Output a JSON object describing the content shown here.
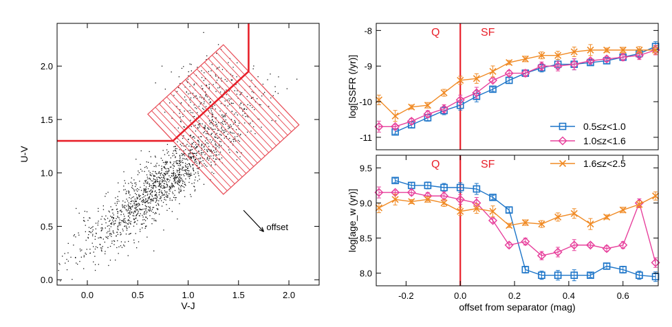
{
  "colors": {
    "axis": "#000000",
    "red": "#e8202a",
    "blue": "#1b74c8",
    "magenta": "#e7409c",
    "orange": "#f08a24",
    "hatch": "#e8505a"
  },
  "chart_data": [
    {
      "id": "uvj",
      "type": "scatter",
      "xlabel": "V-J",
      "ylabel": "U-V",
      "xlim": [
        -0.3,
        2.3
      ],
      "ylim": [
        -0.05,
        2.4
      ],
      "xticks": [
        "0.0",
        "0.5",
        "1.0",
        "1.5",
        "2.0"
      ],
      "xtick_values": [
        0.0,
        0.5,
        1.0,
        1.5,
        2.0
      ],
      "yticks": [
        "0.0",
        "0.5",
        "1.0",
        "1.5",
        "2.0"
      ],
      "ytick_values": [
        0.0,
        0.5,
        1.0,
        1.5,
        2.0
      ],
      "separator_line": [
        [
          -0.3,
          1.3
        ],
        [
          0.85,
          1.3
        ],
        [
          1.6,
          1.95
        ],
        [
          1.6,
          2.4
        ]
      ],
      "hatched_box_corners": [
        [
          0.6,
          1.55
        ],
        [
          1.35,
          2.2
        ],
        [
          2.1,
          1.45
        ],
        [
          1.35,
          0.8
        ]
      ],
      "annotation": "offset",
      "annotation_arrow": [
        [
          1.55,
          0.65
        ],
        [
          1.75,
          0.45
        ]
      ],
      "grid": false,
      "legend": "none"
    },
    {
      "id": "ssfr",
      "type": "line",
      "ylabel": "log[SSFR (/yr)]",
      "xlim": [
        -0.31,
        0.73
      ],
      "ylim": [
        -11.35,
        -7.8
      ],
      "yticks": [
        "-8",
        "-9",
        "-10",
        "-11"
      ],
      "ytick_values": [
        -8,
        -9,
        -10,
        -11
      ],
      "region_labels": [
        "Q",
        "SF"
      ],
      "separator_x": 0.0,
      "legend": "bottom-right",
      "series": [
        {
          "name": "0.5≤z<1.0",
          "marker": "square",
          "color": "#1b74c8",
          "x": [
            -0.24,
            -0.18,
            -0.12,
            -0.06,
            0.0,
            0.06,
            0.12,
            0.18,
            0.24,
            0.3,
            0.36,
            0.42,
            0.48,
            0.54,
            0.6,
            0.66,
            0.72
          ],
          "y": [
            -10.85,
            -10.65,
            -10.45,
            -10.25,
            -10.1,
            -9.85,
            -9.65,
            -9.4,
            -9.2,
            -9.05,
            -8.95,
            -8.95,
            -8.9,
            -8.85,
            -8.75,
            -8.65,
            -8.45
          ]
        },
        {
          "name": "1.0≤z<1.6",
          "marker": "diamond",
          "color": "#e7409c",
          "x": [
            -0.3,
            -0.24,
            -0.18,
            -0.12,
            -0.06,
            0.0,
            0.06,
            0.12,
            0.18,
            0.24,
            0.3,
            0.36,
            0.42,
            0.48,
            0.54,
            0.6,
            0.66,
            0.72
          ],
          "y": [
            -10.7,
            -10.7,
            -10.55,
            -10.35,
            -10.2,
            -9.95,
            -9.75,
            -9.4,
            -9.2,
            -9.2,
            -9.0,
            -9.0,
            -8.95,
            -8.85,
            -8.8,
            -8.75,
            -8.7,
            -8.55
          ]
        },
        {
          "name": "1.6≤z<2.5",
          "marker": "x",
          "color": "#f08a24",
          "x": [
            -0.3,
            -0.24,
            -0.18,
            -0.12,
            -0.06,
            0.0,
            0.06,
            0.12,
            0.18,
            0.24,
            0.3,
            0.36,
            0.42,
            0.48,
            0.54,
            0.6,
            0.66,
            0.72
          ],
          "y": [
            -9.95,
            -10.4,
            -10.15,
            -10.1,
            -9.75,
            -9.4,
            -9.35,
            -9.15,
            -8.9,
            -8.8,
            -8.7,
            -8.7,
            -8.6,
            -8.55,
            -8.55,
            -8.55,
            -8.55,
            -8.55
          ]
        }
      ]
    },
    {
      "id": "age",
      "type": "line",
      "xlabel": "offset from separator (mag)",
      "ylabel": "log[age_w (yr)]",
      "xlim": [
        -0.31,
        0.73
      ],
      "ylim": [
        7.82,
        9.68
      ],
      "xticks": [
        "-0.2",
        "0.0",
        "0.2",
        "0.4",
        "0.6"
      ],
      "xtick_values": [
        -0.2,
        0.0,
        0.2,
        0.4,
        0.6
      ],
      "yticks": [
        "9.5",
        "9.0",
        "8.5",
        "8.0"
      ],
      "ytick_values": [
        9.5,
        9.0,
        8.5,
        8.0
      ],
      "region_labels": [
        "Q",
        "SF"
      ],
      "separator_x": 0.0,
      "legend": "none",
      "series": [
        {
          "name": "0.5≤z<1.0",
          "marker": "square",
          "color": "#1b74c8",
          "x": [
            -0.24,
            -0.18,
            -0.12,
            -0.06,
            0.0,
            0.06,
            0.12,
            0.18,
            0.24,
            0.3,
            0.36,
            0.42,
            0.48,
            0.54,
            0.6,
            0.66,
            0.72
          ],
          "y": [
            9.32,
            9.25,
            9.25,
            9.22,
            9.22,
            9.2,
            9.08,
            8.9,
            8.05,
            7.97,
            7.97,
            7.97,
            7.97,
            8.1,
            8.05,
            7.97,
            7.95
          ]
        },
        {
          "name": "1.0≤z<1.6",
          "marker": "diamond",
          "color": "#e7409c",
          "x": [
            -0.3,
            -0.24,
            -0.18,
            -0.12,
            -0.06,
            0.0,
            0.06,
            0.12,
            0.18,
            0.24,
            0.3,
            0.36,
            0.42,
            0.48,
            0.54,
            0.6,
            0.66,
            0.72
          ],
          "y": [
            9.15,
            9.15,
            9.15,
            9.1,
            9.1,
            9.05,
            9.0,
            8.75,
            8.4,
            8.45,
            8.25,
            8.3,
            8.4,
            8.4,
            8.35,
            8.4,
            9.0,
            8.15
          ]
        },
        {
          "name": "1.6≤z<2.5",
          "marker": "x",
          "color": "#f08a24",
          "x": [
            -0.3,
            -0.24,
            -0.18,
            -0.12,
            -0.06,
            0.0,
            0.06,
            0.12,
            0.18,
            0.24,
            0.3,
            0.36,
            0.42,
            0.48,
            0.54,
            0.6,
            0.66,
            0.72
          ],
          "y": [
            8.93,
            9.05,
            9.02,
            9.05,
            9.0,
            8.88,
            8.92,
            8.88,
            8.68,
            8.72,
            8.7,
            8.8,
            8.85,
            8.7,
            8.8,
            8.9,
            8.98,
            9.1
          ]
        }
      ]
    }
  ]
}
